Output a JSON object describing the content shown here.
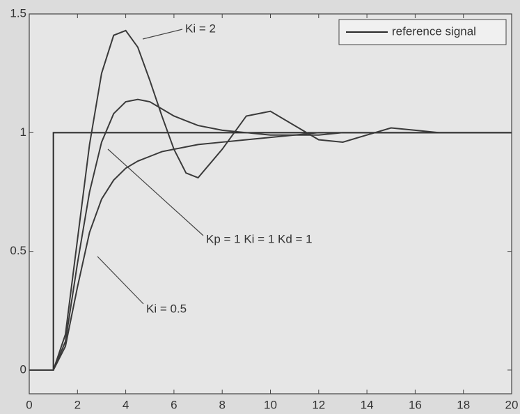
{
  "chart_data": {
    "type": "line",
    "xlim": [
      0,
      20
    ],
    "xticks": [
      0,
      2,
      4,
      6,
      8,
      10,
      12,
      14,
      16,
      18,
      20
    ],
    "ylim": [
      -0.1,
      1.5
    ],
    "yticks": [
      0,
      0.5,
      1,
      1.5
    ],
    "grid": false,
    "legend": "upper right",
    "annotations": [
      "Ki = 2",
      "Kp = 1  Ki = 1  Kd = 1",
      "Ki = 0.5"
    ],
    "series": [
      {
        "name": "reference signal",
        "color": "#2a2a2a",
        "x": [
          0,
          1,
          1,
          20
        ],
        "values": [
          0,
          0,
          1,
          1
        ]
      },
      {
        "color": "#3a3a3a",
        "x": [
          0,
          1,
          1.5,
          2,
          2.5,
          3,
          3.5,
          4,
          4.5,
          5,
          5.5,
          6,
          6.5,
          7,
          8,
          9,
          10,
          11,
          12,
          13,
          14,
          15,
          16,
          17,
          18,
          19,
          20
        ],
        "values": [
          0,
          0,
          0.15,
          0.55,
          0.95,
          1.25,
          1.41,
          1.43,
          1.36,
          1.22,
          1.07,
          0.93,
          0.83,
          0.81,
          0.93,
          1.07,
          1.09,
          1.03,
          0.97,
          0.96,
          0.99,
          1.02,
          1.01,
          1.0,
          1.0,
          1.0,
          1.0
        ]
      },
      {
        "color": "#3a3a3a",
        "x": [
          0,
          1,
          1.5,
          2,
          2.5,
          3,
          3.5,
          4,
          4.5,
          5,
          5.5,
          6,
          6.5,
          7,
          8,
          9,
          10,
          11,
          12,
          13,
          14,
          15,
          16,
          17,
          18,
          19,
          20
        ],
        "values": [
          0,
          0,
          0.12,
          0.45,
          0.75,
          0.96,
          1.08,
          1.13,
          1.14,
          1.13,
          1.1,
          1.07,
          1.05,
          1.03,
          1.01,
          1.0,
          0.99,
          0.99,
          1.0,
          1.0,
          1.0,
          1.0,
          1.0,
          1.0,
          1.0,
          1.0,
          1.0
        ]
      },
      {
        "color": "#3a3a3a",
        "x": [
          0,
          1,
          1.5,
          2,
          2.5,
          3,
          3.5,
          4,
          4.5,
          5,
          5.5,
          6,
          6.5,
          7,
          8,
          9,
          10,
          11,
          12,
          13,
          14,
          15,
          16,
          17,
          18,
          19,
          20
        ],
        "values": [
          0,
          0,
          0.1,
          0.35,
          0.58,
          0.72,
          0.8,
          0.85,
          0.88,
          0.9,
          0.92,
          0.93,
          0.94,
          0.95,
          0.96,
          0.97,
          0.98,
          0.99,
          0.99,
          1.0,
          1.0,
          1.0,
          1.0,
          1.0,
          1.0,
          1.0,
          1.0
        ]
      }
    ]
  }
}
